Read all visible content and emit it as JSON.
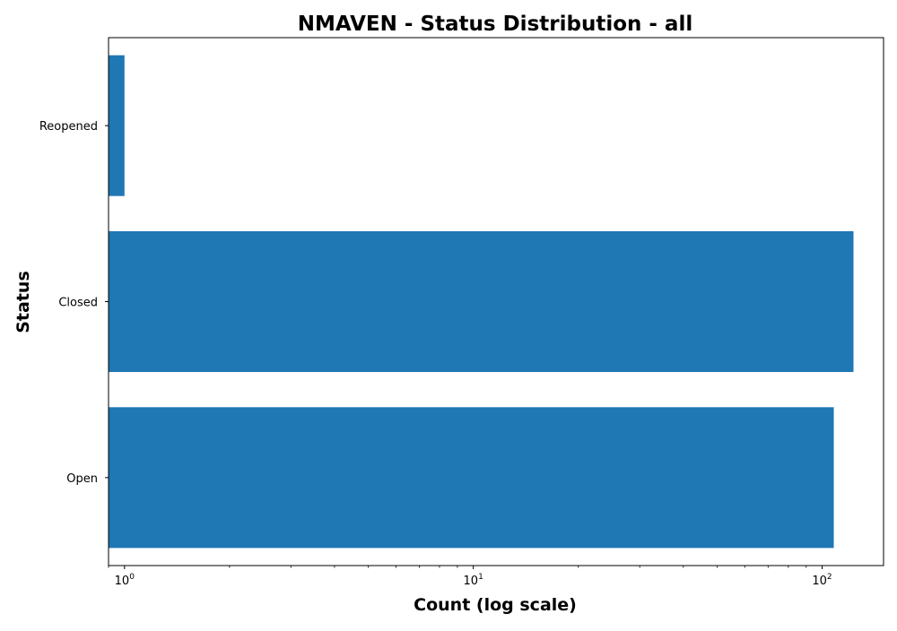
{
  "chart_data": {
    "type": "bar",
    "orientation": "horizontal",
    "title": "NMAVEN - Status Distribution - all",
    "xlabel": "Count (log scale)",
    "ylabel": "Status",
    "x_scale": "log",
    "xlim": [
      0.9,
      150
    ],
    "categories": [
      "Open",
      "Closed",
      "Reopened"
    ],
    "values": [
      108,
      123,
      1
    ],
    "x_ticks": [
      {
        "base": "10",
        "exp": "0",
        "value": 1
      },
      {
        "base": "10",
        "exp": "1",
        "value": 10
      },
      {
        "base": "10",
        "exp": "2",
        "value": 100
      }
    ],
    "bar_color": "#1f77b4",
    "grid": false,
    "legend": "none"
  }
}
